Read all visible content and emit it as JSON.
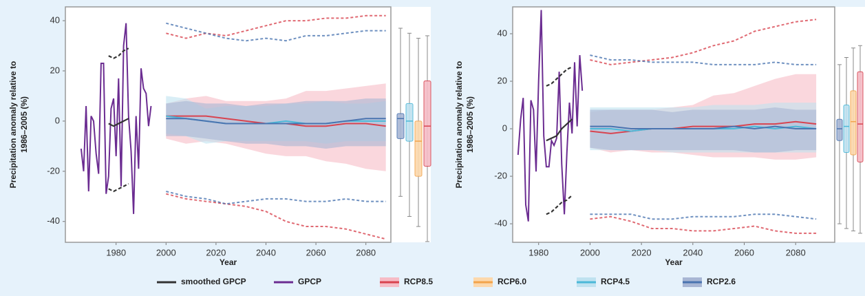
{
  "legend": [
    {
      "name": "smoothed GPCP",
      "color": "#333333"
    },
    {
      "name": "GPCP",
      "color": "#6b2c91"
    },
    {
      "name": "RCP8.5",
      "color": "#d8434f",
      "band_color": "#f6bcc6"
    },
    {
      "name": "RCP6.0",
      "color": "#f2a44c",
      "band_color": "#fcd8ac"
    },
    {
      "name": "RCP4.5",
      "color": "#4bb8d8",
      "band_color": "#bfe2f0"
    },
    {
      "name": "RCP2.6",
      "color": "#4a74b0",
      "band_color": "#a8b6d4"
    }
  ],
  "chart_data": [
    {
      "type": "line",
      "ylabel": [
        "Precipitation anomaly relative to",
        "1986–2005 (%)"
      ],
      "xlabel": "Year",
      "xlim": [
        1959.7,
        2090
      ],
      "ylim": [
        -48.3,
        45.5
      ],
      "xticks": [
        1980,
        2000,
        2020,
        2040,
        2060,
        2080
      ],
      "yticks": [
        -40,
        -20,
        0,
        20,
        40
      ],
      "gpcp": {
        "x": [
          1966,
          1967,
          1968,
          1969,
          1970,
          1971,
          1972,
          1973,
          1974,
          1975,
          1976,
          1977,
          1978,
          1979,
          1980,
          1981,
          1982,
          1983,
          1984,
          1985,
          1986,
          1987,
          1988,
          1989,
          1990,
          1991,
          1992,
          1993,
          1994
        ],
        "values": [
          -11,
          -20,
          6,
          -28,
          2,
          0,
          -13,
          -21,
          23,
          23,
          -29,
          -22,
          5,
          9,
          -14,
          17,
          -26,
          30,
          39,
          2,
          -12,
          -37,
          2,
          -19,
          21,
          13,
          11,
          -2,
          6
        ]
      },
      "smoothed": {
        "x": [
          1977,
          1979,
          1981,
          1983,
          1985
        ],
        "values": [
          -1,
          -2,
          -1,
          0,
          1
        ],
        "upper": [
          26,
          25,
          26,
          28,
          29
        ],
        "lower": [
          -27,
          -28,
          -27,
          -26,
          -25
        ]
      },
      "rcp_x": [
        2000,
        2008,
        2016,
        2024,
        2032,
        2040,
        2048,
        2056,
        2064,
        2072,
        2080,
        2088
      ],
      "rcp85": {
        "values": [
          2,
          2,
          2,
          1,
          0,
          -1,
          -1,
          -2,
          -2,
          -1,
          -1,
          -2
        ],
        "low": [
          -7,
          -9,
          -8,
          -9,
          -11,
          -13,
          -14,
          -14,
          -16,
          -17,
          -19,
          -20
        ],
        "high": [
          7,
          9,
          10,
          8,
          8,
          8,
          9,
          12,
          12,
          13,
          14,
          15
        ],
        "upper": [
          35,
          33,
          35,
          34,
          36,
          38,
          40,
          40,
          41,
          41,
          42,
          42
        ],
        "lower": [
          -29,
          -31,
          -32,
          -33,
          -34,
          -36,
          -40,
          -42,
          -42,
          -43,
          -45,
          -47
        ],
        "box": {
          "min": -48,
          "q1": -18,
          "median": -2,
          "q3": 16,
          "max": 34
        }
      },
      "rcp60": {
        "box": {
          "min": -42,
          "q1": -22,
          "median": -8,
          "q3": 0,
          "max": 33
        }
      },
      "rcp45": {
        "values": [
          2,
          1,
          0,
          -1,
          -1,
          -1,
          0,
          -1,
          -1,
          0,
          0,
          0
        ],
        "low": [
          -5,
          -6,
          -9,
          -8,
          -8,
          -8,
          -8,
          -8,
          -9,
          -8,
          -8,
          -8
        ],
        "high": [
          10,
          9,
          5,
          6,
          6,
          6,
          7,
          7,
          8,
          7,
          7,
          8
        ],
        "box": {
          "min": -38,
          "q1": -8,
          "median": 0,
          "q3": 7,
          "max": 35
        }
      },
      "rcp26": {
        "values": [
          1,
          1,
          0,
          -1,
          -1,
          -1,
          -1,
          -1,
          -1,
          0,
          1,
          1
        ],
        "low": [
          -6,
          -6,
          -7,
          -8,
          -9,
          -9,
          -10,
          -10,
          -11,
          -10,
          -10,
          -10
        ],
        "high": [
          7,
          8,
          7,
          7,
          6,
          7,
          7,
          8,
          8,
          8,
          9,
          9
        ],
        "upper": [
          39,
          37,
          35,
          33,
          32,
          33,
          32,
          34,
          34,
          35,
          36,
          36
        ],
        "lower": [
          -28,
          -30,
          -31,
          -33,
          -32,
          -31,
          -31,
          -32,
          -32,
          -31,
          -32,
          -32
        ],
        "box": {
          "min": -30,
          "q1": -7,
          "median": 1,
          "q3": 3,
          "max": 37
        }
      }
    },
    {
      "type": "line",
      "ylabel": [
        "Precipitation anomaly relative to",
        "1986–2005 (%)"
      ],
      "xlabel": "Year",
      "xlim": [
        1969.9,
        2095.2
      ],
      "ylim": [
        -47.8,
        51.3
      ],
      "xticks": [
        1980,
        2000,
        2020,
        2040,
        2060,
        2080
      ],
      "yticks": [
        -40,
        -20,
        0,
        20,
        40
      ],
      "gpcp": {
        "x": [
          1972,
          1973,
          1974,
          1975,
          1976,
          1977,
          1978,
          1979,
          1980,
          1981,
          1982,
          1983,
          1984,
          1985,
          1986,
          1987,
          1988,
          1989,
          1990,
          1991,
          1992,
          1993,
          1994,
          1995,
          1996,
          1997
        ],
        "values": [
          -11,
          4,
          13,
          -32,
          -39,
          12,
          8,
          -18,
          20,
          50,
          -3,
          -16,
          -16,
          -5,
          -7,
          -4,
          24,
          -15,
          -36,
          -10,
          11,
          -2,
          28,
          1,
          31,
          16
        ]
      },
      "smoothed": {
        "x": [
          1983,
          1985,
          1987,
          1989,
          1991,
          1993
        ],
        "values": [
          -5,
          -4,
          -3,
          0,
          2,
          4
        ],
        "upper": [
          18,
          19,
          21,
          23,
          25,
          26
        ],
        "lower": [
          -36,
          -35,
          -33,
          -31,
          -30,
          -28
        ]
      },
      "rcp_x": [
        2000,
        2008,
        2016,
        2024,
        2032,
        2040,
        2048,
        2056,
        2064,
        2072,
        2080,
        2088
      ],
      "rcp85": {
        "values": [
          -1,
          -2,
          -1,
          0,
          0,
          1,
          1,
          1,
          2,
          2,
          3,
          2
        ],
        "low": [
          -8,
          -10,
          -9,
          -10,
          -10,
          -11,
          -12,
          -12,
          -12,
          -13,
          -13,
          -12
        ],
        "high": [
          7,
          8,
          8,
          8,
          9,
          10,
          14,
          15,
          18,
          21,
          23,
          23
        ],
        "upper": [
          29,
          27,
          28,
          29,
          30,
          32,
          35,
          37,
          41,
          43,
          45,
          46
        ],
        "lower": [
          -38,
          -37,
          -39,
          -42,
          -42,
          -43,
          -43,
          -42,
          -41,
          -43,
          -44,
          -44
        ],
        "box": {
          "min": -44,
          "q1": -14,
          "median": 2,
          "q3": 24,
          "max": 35
        }
      },
      "rcp60": {
        "box": {
          "min": -43,
          "q1": -11,
          "median": 3,
          "q3": 16,
          "max": 34
        }
      },
      "rcp45": {
        "values": [
          0,
          0,
          -1,
          0,
          0,
          0,
          0,
          0,
          1,
          0,
          1,
          0
        ],
        "low": [
          -9,
          -9,
          -9,
          -9,
          -10,
          -10,
          -10,
          -10,
          -10,
          -10,
          -10,
          -10
        ],
        "high": [
          9,
          9,
          9,
          9,
          9,
          9,
          10,
          10,
          10,
          11,
          11,
          11
        ],
        "box": {
          "min": -42,
          "q1": -10,
          "median": 1,
          "q3": 10,
          "max": 30
        }
      },
      "rcp26": {
        "values": [
          1,
          1,
          0,
          0,
          0,
          0,
          0,
          1,
          0,
          1,
          0,
          0
        ],
        "low": [
          -8,
          -9,
          -9,
          -9,
          -9,
          -9,
          -9,
          -9,
          -10,
          -10,
          -9,
          -9
        ],
        "high": [
          8,
          8,
          8,
          8,
          7,
          8,
          8,
          8,
          8,
          9,
          8,
          8
        ],
        "upper": [
          31,
          29,
          29,
          28,
          28,
          28,
          27,
          27,
          27,
          28,
          27,
          27
        ],
        "lower": [
          -36,
          -36,
          -36,
          -38,
          -38,
          -37,
          -37,
          -37,
          -36,
          -36,
          -37,
          -38
        ],
        "box": {
          "min": -40,
          "q1": -5,
          "median": 0,
          "q3": 4,
          "max": 27
        }
      }
    }
  ]
}
